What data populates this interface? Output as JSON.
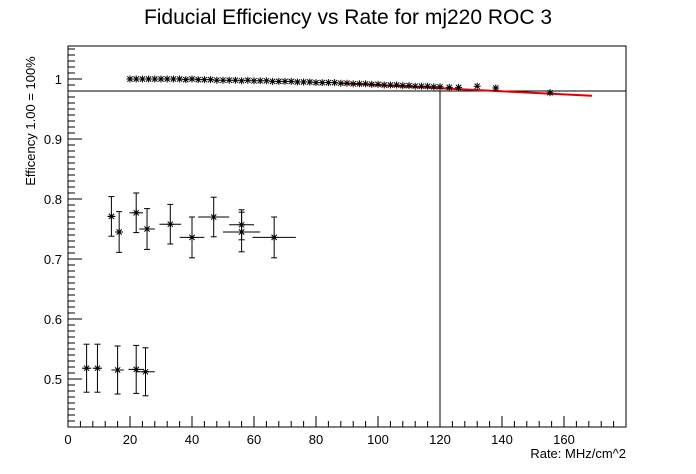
{
  "chart_data": {
    "type": "scatter",
    "title": "Fiducial Efficiency vs Rate for mj220 ROC 3",
    "xlabel": "Rate: MHz/cm^2",
    "ylabel": "Efficency 1.00 = 100%",
    "xlim": [
      0,
      180
    ],
    "ylim": [
      0.42,
      1.055
    ],
    "x_ticks": [
      0,
      20,
      40,
      60,
      80,
      100,
      120,
      140,
      160
    ],
    "y_ticks": [
      0.5,
      0.6,
      0.7,
      0.8,
      0.9,
      1.0
    ],
    "x_tick_labels": [
      "0",
      "20",
      "40",
      "60",
      "80",
      "100",
      "120",
      "140",
      "160"
    ],
    "y_tick_labels": [
      "0.5",
      "0.6",
      "0.7",
      "0.8",
      "0.9",
      "1"
    ],
    "grid": false,
    "reference_lines": {
      "horizontal_y": 0.98,
      "vertical_x": 120
    },
    "fit_line": {
      "color": "#e00000",
      "x": [
        88,
        169
      ],
      "y": [
        0.993,
        0.972
      ]
    },
    "series": [
      {
        "points": [
          {
            "x": 20,
            "y": 1.0
          },
          {
            "x": 22,
            "y": 1.0
          },
          {
            "x": 24,
            "y": 1.0
          },
          {
            "x": 26,
            "y": 1.0
          },
          {
            "x": 28,
            "y": 1.0
          },
          {
            "x": 30,
            "y": 1.0
          },
          {
            "x": 32,
            "y": 1.0
          },
          {
            "x": 34,
            "y": 1.0
          },
          {
            "x": 36,
            "y": 1.0
          },
          {
            "x": 38,
            "y": 0.999
          },
          {
            "x": 40,
            "y": 1.0
          },
          {
            "x": 42,
            "y": 0.999
          },
          {
            "x": 44,
            "y": 0.999
          },
          {
            "x": 46,
            "y": 0.999
          },
          {
            "x": 48,
            "y": 0.998
          },
          {
            "x": 50,
            "y": 0.998
          },
          {
            "x": 52,
            "y": 0.998
          },
          {
            "x": 54,
            "y": 0.998
          },
          {
            "x": 56,
            "y": 0.997
          },
          {
            "x": 58,
            "y": 0.998
          },
          {
            "x": 60,
            "y": 0.997
          },
          {
            "x": 62,
            "y": 0.997
          },
          {
            "x": 64,
            "y": 0.997
          },
          {
            "x": 66,
            "y": 0.996
          },
          {
            "x": 68,
            "y": 0.996
          },
          {
            "x": 70,
            "y": 0.996
          },
          {
            "x": 72,
            "y": 0.996
          },
          {
            "x": 74,
            "y": 0.995
          },
          {
            "x": 76,
            "y": 0.995
          },
          {
            "x": 78,
            "y": 0.995
          },
          {
            "x": 80,
            "y": 0.994
          },
          {
            "x": 82,
            "y": 0.994
          },
          {
            "x": 84,
            "y": 0.994
          },
          {
            "x": 86,
            "y": 0.994
          },
          {
            "x": 88,
            "y": 0.993
          },
          {
            "x": 90,
            "y": 0.993
          },
          {
            "x": 92,
            "y": 0.992
          },
          {
            "x": 94,
            "y": 0.992
          },
          {
            "x": 96,
            "y": 0.992
          },
          {
            "x": 98,
            "y": 0.991
          },
          {
            "x": 100,
            "y": 0.991
          },
          {
            "x": 102,
            "y": 0.99
          },
          {
            "x": 104,
            "y": 0.99
          },
          {
            "x": 106,
            "y": 0.99
          },
          {
            "x": 108,
            "y": 0.989
          },
          {
            "x": 110,
            "y": 0.989
          },
          {
            "x": 112,
            "y": 0.988
          },
          {
            "x": 114,
            "y": 0.988
          },
          {
            "x": 116,
            "y": 0.988
          },
          {
            "x": 118,
            "y": 0.987
          },
          {
            "x": 120,
            "y": 0.987
          },
          {
            "x": 123,
            "y": 0.986
          },
          {
            "x": 126,
            "y": 0.986
          },
          {
            "x": 132,
            "y": 0.988
          },
          {
            "x": 138,
            "y": 0.985
          },
          {
            "x": 155.5,
            "y": 0.977
          }
        ]
      },
      {
        "points": [
          {
            "x": 14,
            "y": 0.771,
            "xerr": 1.3,
            "yerr": 0.033
          },
          {
            "x": 16.5,
            "y": 0.745,
            "xerr": 1.3,
            "yerr": 0.034
          },
          {
            "x": 22,
            "y": 0.777,
            "xerr": 2.2,
            "yerr": 0.033
          },
          {
            "x": 25.5,
            "y": 0.75,
            "xerr": 2.5,
            "yerr": 0.034
          },
          {
            "x": 33,
            "y": 0.758,
            "xerr": 3.5,
            "yerr": 0.033
          },
          {
            "x": 40,
            "y": 0.736,
            "xerr": 4.0,
            "yerr": 0.034
          },
          {
            "x": 47,
            "y": 0.77,
            "xerr": 5.0,
            "yerr": 0.033
          },
          {
            "x": 56,
            "y": 0.745,
            "xerr": 6.0,
            "yerr": 0.033
          },
          {
            "x": 56,
            "y": 0.757,
            "xerr": 4.0,
            "yerr": 0.025
          },
          {
            "x": 66.5,
            "y": 0.736,
            "xerr": 7.0,
            "yerr": 0.034
          }
        ]
      },
      {
        "points": [
          {
            "x": 6,
            "y": 0.518,
            "xerr": 1.5,
            "yerr": 0.04
          },
          {
            "x": 9.5,
            "y": 0.518,
            "xerr": 1.5,
            "yerr": 0.04
          },
          {
            "x": 16,
            "y": 0.515,
            "xerr": 2.0,
            "yerr": 0.04
          },
          {
            "x": 22,
            "y": 0.516,
            "xerr": 2.5,
            "yerr": 0.04
          },
          {
            "x": 25,
            "y": 0.512,
            "xerr": 3.0,
            "yerr": 0.04
          }
        ]
      }
    ]
  }
}
